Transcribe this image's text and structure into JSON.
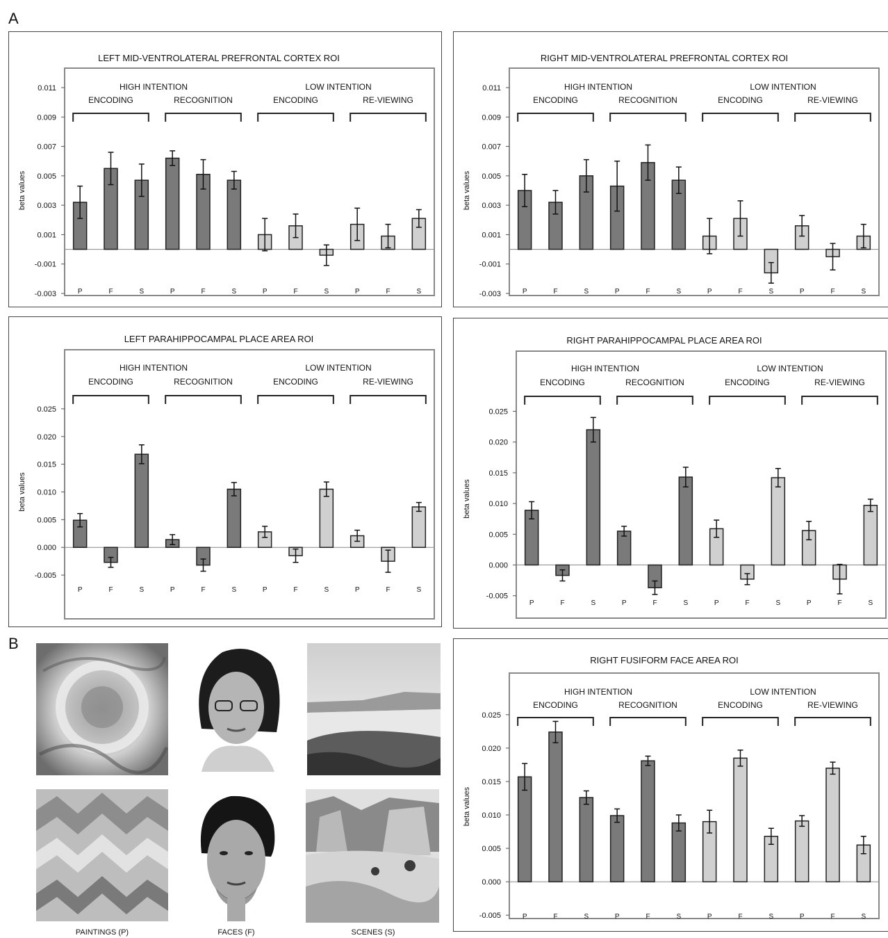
{
  "labels": {
    "panel_a": "A",
    "panel_b": "B"
  },
  "images": {
    "captions": [
      "PAINTINGS (P)",
      "FACES (F)",
      "SCENES (S)"
    ]
  },
  "colors": {
    "high_intention": "#7a7a7a",
    "low_intention": "#d0d0d0",
    "frame": "#888888"
  },
  "chart_data": [
    {
      "type": "bar",
      "title": "LEFT MID-VENTROLATERAL PREFRONTAL CORTEX ROI",
      "ylabel": "beta values",
      "ylim": [
        -0.003,
        0.011
      ],
      "yticks": [
        "0.011",
        "0.009",
        "0.007",
        "0.005",
        "0.003",
        "0.001",
        "-0.001",
        "-0.003"
      ],
      "ytick_values": [
        0.011,
        0.009,
        0.007,
        0.005,
        0.003,
        0.001,
        -0.001,
        -0.003
      ],
      "groups": [
        {
          "label": "HIGH INTENTION"
        },
        {
          "label": "LOW INTENTION"
        }
      ],
      "subgroups": [
        "ENCODING",
        "RECOGNITION",
        "ENCODING",
        "RE-VIEWING"
      ],
      "categories": [
        "P",
        "F",
        "S",
        "P",
        "F",
        "S",
        "P",
        "F",
        "S",
        "P",
        "F",
        "S"
      ],
      "values": [
        0.0032,
        0.0055,
        0.0047,
        0.0062,
        0.0051,
        0.0047,
        0.001,
        0.0016,
        -0.0004,
        0.0017,
        0.0009,
        0.0021
      ],
      "errors": [
        0.0011,
        0.0011,
        0.0011,
        0.0005,
        0.001,
        0.0006,
        0.0011,
        0.0008,
        0.0007,
        0.0011,
        0.0008,
        0.0006
      ]
    },
    {
      "type": "bar",
      "title": "RIGHT MID-VENTROLATERAL PREFRONTAL CORTEX ROI",
      "ylabel": "beta values",
      "ylim": [
        -0.003,
        0.011
      ],
      "yticks": [
        "0.011",
        "0.009",
        "0.007",
        "0.005",
        "0.003",
        "0.001",
        "-0.001",
        "-0.003"
      ],
      "ytick_values": [
        0.011,
        0.009,
        0.007,
        0.005,
        0.003,
        0.001,
        -0.001,
        -0.003
      ],
      "groups": [
        {
          "label": "HIGH INTENTION"
        },
        {
          "label": "LOW INTENTION"
        }
      ],
      "subgroups": [
        "ENCODING",
        "RECOGNITION",
        "ENCODING",
        "RE-VIEWING"
      ],
      "categories": [
        "P",
        "F",
        "S",
        "P",
        "F",
        "S",
        "P",
        "F",
        "S",
        "P",
        "F",
        "S"
      ],
      "values": [
        0.004,
        0.0032,
        0.005,
        0.0043,
        0.0059,
        0.0047,
        0.0009,
        0.0021,
        -0.0016,
        0.0016,
        -0.0005,
        0.0009
      ],
      "errors": [
        0.0011,
        0.0008,
        0.0011,
        0.0017,
        0.0012,
        0.0009,
        0.0012,
        0.0012,
        0.0007,
        0.0007,
        0.0009,
        0.0008
      ]
    },
    {
      "type": "bar",
      "title": "LEFT PARAHIPPOCAMPAL PLACE AREA ROI",
      "ylabel": "beta values",
      "ylim": [
        -0.008,
        0.028
      ],
      "yticks": [
        "0.025",
        "0.020",
        "0.015",
        "0.010",
        "0.005",
        "0.000",
        "-0.005"
      ],
      "ytick_values": [
        0.025,
        0.02,
        0.015,
        0.01,
        0.005,
        0.0,
        -0.005
      ],
      "groups": [
        {
          "label": "HIGH INTENTION"
        },
        {
          "label": "LOW INTENTION"
        }
      ],
      "subgroups": [
        "ENCODING",
        "RECOGNITION",
        "ENCODING",
        "RE-VIEWING"
      ],
      "categories": [
        "P",
        "F",
        "S",
        "P",
        "F",
        "S",
        "P",
        "F",
        "S",
        "P",
        "F",
        "S"
      ],
      "values": [
        0.0049,
        -0.0027,
        0.0168,
        0.0014,
        -0.0032,
        0.0105,
        0.0028,
        -0.0015,
        0.0105,
        0.0021,
        -0.0025,
        0.0073
      ],
      "errors": [
        0.0012,
        0.0009,
        0.0017,
        0.0009,
        0.0011,
        0.0012,
        0.001,
        0.0012,
        0.0013,
        0.001,
        0.002,
        0.0008
      ]
    },
    {
      "type": "bar",
      "title": "RIGHT PARAHIPPOCAMPAL PLACE AREA ROI",
      "ylabel": "beta values",
      "ylim": [
        -0.0065,
        0.028
      ],
      "yticks": [
        "0.025",
        "0.020",
        "0.015",
        "0.010",
        "0.005",
        "0.000",
        "-0.005"
      ],
      "ytick_values": [
        0.025,
        0.02,
        0.015,
        0.01,
        0.005,
        0.0,
        -0.005
      ],
      "groups": [
        {
          "label": "HIGH INTENTION"
        },
        {
          "label": "LOW INTENTION"
        }
      ],
      "subgroups": [
        "ENCODING",
        "RECOGNITION",
        "ENCODING",
        "RE-VIEWING"
      ],
      "categories": [
        "P",
        "F",
        "S",
        "P",
        "F",
        "S",
        "P",
        "F",
        "S",
        "P",
        "F",
        "S"
      ],
      "values": [
        0.0089,
        -0.0017,
        0.022,
        0.0055,
        -0.0037,
        0.0143,
        0.0059,
        -0.0023,
        0.0142,
        0.0056,
        -0.0023,
        0.0097
      ],
      "errors": [
        0.0014,
        0.0009,
        0.002,
        0.0008,
        0.0011,
        0.0016,
        0.0014,
        0.0009,
        0.0015,
        0.0015,
        0.0024,
        0.001
      ]
    },
    {
      "type": "bar",
      "title": "RIGHT FUSIFORM FACE AREA ROI",
      "ylabel": "beta values",
      "ylim": [
        -0.0055,
        0.028
      ],
      "yticks": [
        "0.025",
        "0.020",
        "0.015",
        "0.010",
        "0.005",
        "0.000",
        "-0.005"
      ],
      "ytick_values": [
        0.025,
        0.02,
        0.015,
        0.01,
        0.005,
        0.0,
        -0.005
      ],
      "groups": [
        {
          "label": "HIGH INTENTION"
        },
        {
          "label": "LOW INTENTION"
        }
      ],
      "subgroups": [
        "ENCODING",
        "RECOGNITION",
        "ENCODING",
        "RE-VIEWING"
      ],
      "categories": [
        "P",
        "F",
        "S",
        "P",
        "F",
        "S",
        "P",
        "F",
        "S",
        "P",
        "F",
        "S"
      ],
      "values": [
        0.0157,
        0.0224,
        0.0126,
        0.0099,
        0.0181,
        0.0088,
        0.009,
        0.0185,
        0.0068,
        0.0091,
        0.017,
        0.0055
      ],
      "errors": [
        0.002,
        0.0016,
        0.001,
        0.001,
        0.0007,
        0.0012,
        0.0017,
        0.0012,
        0.0012,
        0.0008,
        0.0009,
        0.0013
      ]
    }
  ]
}
